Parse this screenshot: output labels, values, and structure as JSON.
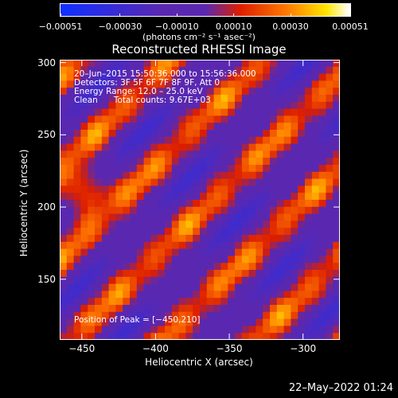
{
  "chart_data": {
    "type": "heatmap",
    "title": "Reconstructed RHESSI Image",
    "xlabel": "Heliocentric X (arcsec)",
    "ylabel": "Heliocentric Y (arcsec)",
    "xlim": [
      -465,
      -275
    ],
    "ylim": [
      108,
      302
    ],
    "xticks": [
      -450,
      -400,
      -350,
      -300
    ],
    "yticks": [
      150,
      200,
      250,
      300
    ],
    "xtick_labels": [
      "−450",
      "−400",
      "−350",
      "−300"
    ],
    "ytick_labels": [
      "150",
      "200",
      "250",
      "300"
    ],
    "colorbar": {
      "min": -0.00051,
      "max": 0.00051,
      "tick_values": [
        -0.00051,
        -0.0003,
        -0.0001,
        0.0001,
        0.0003,
        0.00051
      ],
      "tick_labels": [
        "−0.00051",
        "−0.00030",
        "−0.00010",
        "0.00010",
        "0.00030",
        "0.00051"
      ],
      "units": "(photons cm⁻² s⁻¹ asec⁻²)",
      "colormap": "blue-purple-red-yellow-white"
    },
    "peak_position": [
      -450,
      210
    ],
    "grid": false
  },
  "annotations": {
    "time_range": "20–Jun–2015 15:50:36.000 to 15:56:36.000",
    "detectors": "Detectors: 3F 5F 6F 7F 8F 9F, Att 0",
    "energy_range": "Energy Range: 12.0 – 25.0 keV",
    "clean_counts": "Clean      Total counts: 9.67E+03",
    "peak": "Position of Peak = [−450,210]"
  },
  "timestamp": "22–May–2022 01:24",
  "colors": {
    "blue": "#1030ff",
    "purple": "#5a28b0",
    "red": "#dc1e00",
    "orange": "#ff7800",
    "yellow": "#ffe600",
    "white": "#ffffff"
  }
}
